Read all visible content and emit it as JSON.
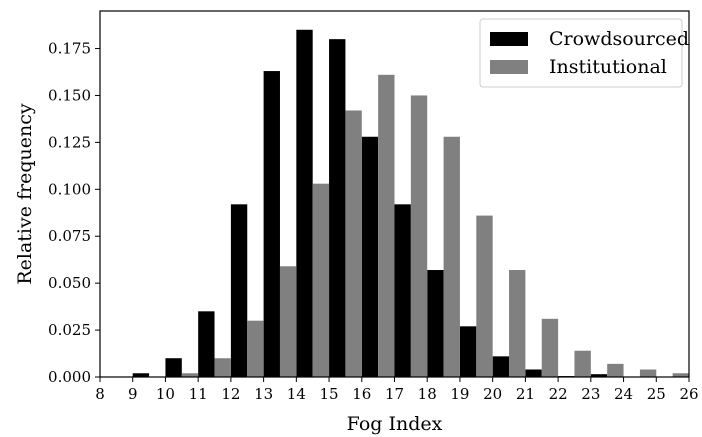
{
  "chart_data": {
    "type": "bar",
    "title": "",
    "xlabel": "Fog Index",
    "ylabel": "Relative frequency",
    "xlim": [
      8,
      26
    ],
    "ylim": [
      0,
      0.195
    ],
    "x_ticks": [
      8,
      9,
      10,
      11,
      12,
      13,
      14,
      15,
      16,
      17,
      18,
      19,
      20,
      21,
      22,
      23,
      24,
      25,
      26
    ],
    "y_ticks": [
      0.0,
      0.025,
      0.05,
      0.075,
      0.1,
      0.125,
      0.15,
      0.175
    ],
    "y_tick_labels": [
      "0.000",
      "0.025",
      "0.050",
      "0.075",
      "0.100",
      "0.125",
      "0.150",
      "0.175"
    ],
    "bin_starts": [
      8,
      9,
      10,
      11,
      12,
      13,
      14,
      15,
      16,
      17,
      18,
      19,
      20,
      21,
      22,
      23,
      24,
      25
    ],
    "bin_width": 1,
    "series": [
      {
        "name": "Crowdsourced",
        "color": "#000000",
        "values": [
          0.0,
          0.002,
          0.01,
          0.035,
          0.092,
          0.163,
          0.185,
          0.18,
          0.128,
          0.092,
          0.057,
          0.027,
          0.011,
          0.004,
          0.0005,
          0.0015,
          0.0,
          0.0
        ]
      },
      {
        "name": "Institutional",
        "color": "#808080",
        "values": [
          0.0,
          0.0,
          0.002,
          0.01,
          0.03,
          0.059,
          0.103,
          0.142,
          0.161,
          0.15,
          0.128,
          0.086,
          0.057,
          0.031,
          0.014,
          0.007,
          0.004,
          0.002
        ]
      }
    ],
    "legend_position": "top-right",
    "grid": false
  }
}
